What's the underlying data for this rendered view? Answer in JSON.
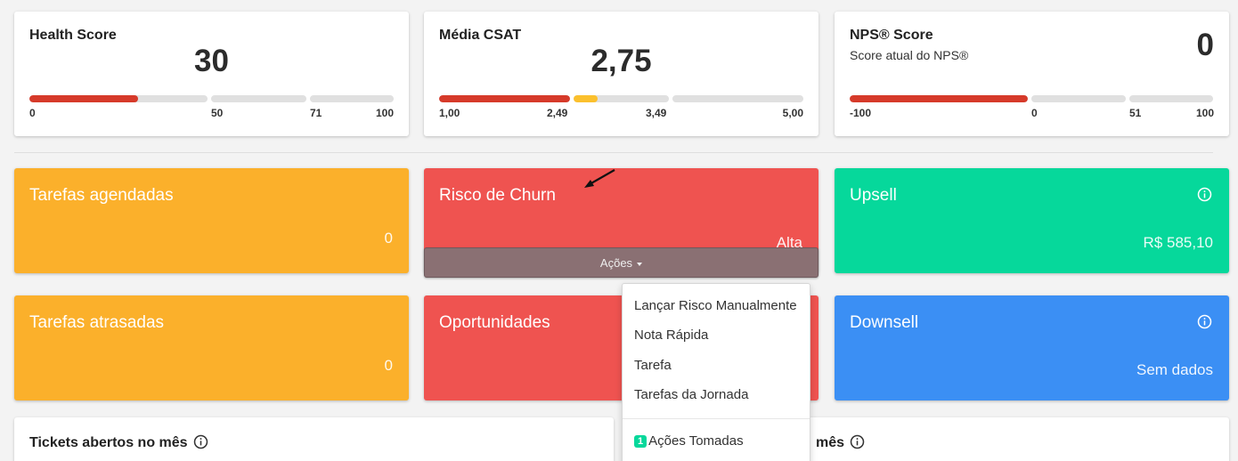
{
  "health": {
    "title": "Health Score",
    "value": "30",
    "ticks": [
      "0",
      "50",
      "71",
      "100"
    ],
    "colors": {
      "fill": "#d63a2a",
      "track": "#e0e0e0"
    }
  },
  "csat": {
    "title": "Média CSAT",
    "value": "2,75",
    "ticks": [
      "1,00",
      "2,49",
      "3,49",
      "5,00"
    ],
    "colors": {
      "red": "#d63a2a",
      "yellow": "#fbc02d",
      "track": "#e0e0e0"
    }
  },
  "nps": {
    "title": "NPS® Score",
    "subtitle": "Score atual do NPS®",
    "value": "0",
    "ticks": [
      "-100",
      "0",
      "51",
      "100"
    ],
    "colors": {
      "fill": "#d63a2a",
      "track": "#e0e0e0"
    }
  },
  "tiles": {
    "tarefas_agendadas": {
      "title": "Tarefas agendadas",
      "value": "0",
      "color": "#fbb02b"
    },
    "risco_churn": {
      "title": "Risco de Churn",
      "value": "Alta",
      "color": "#ef5350",
      "actions_label": "Ações"
    },
    "upsell": {
      "title": "Upsell",
      "value": "R$ 585,10",
      "color": "#06d89b",
      "icon": "info-icon"
    },
    "tarefas_atrasadas": {
      "title": "Tarefas atrasadas",
      "value": "0",
      "color": "#fbb02b"
    },
    "oportunidades": {
      "title": "Oportunidades",
      "color": "#ef5350"
    },
    "downsell": {
      "title": "Downsell",
      "value": "Sem dados",
      "color": "#3b8ff4",
      "icon": "info-icon"
    }
  },
  "actions_menu": {
    "items": [
      "Lançar Risco Manualmente",
      "Nota Rápida",
      "Tarefa",
      "Tarefas da Jornada"
    ],
    "footer_badge": "1",
    "footer_label": "Ações Tomadas"
  },
  "bottom": {
    "left_title": "Tickets abertos no mês",
    "right_title_visible": "mês"
  }
}
